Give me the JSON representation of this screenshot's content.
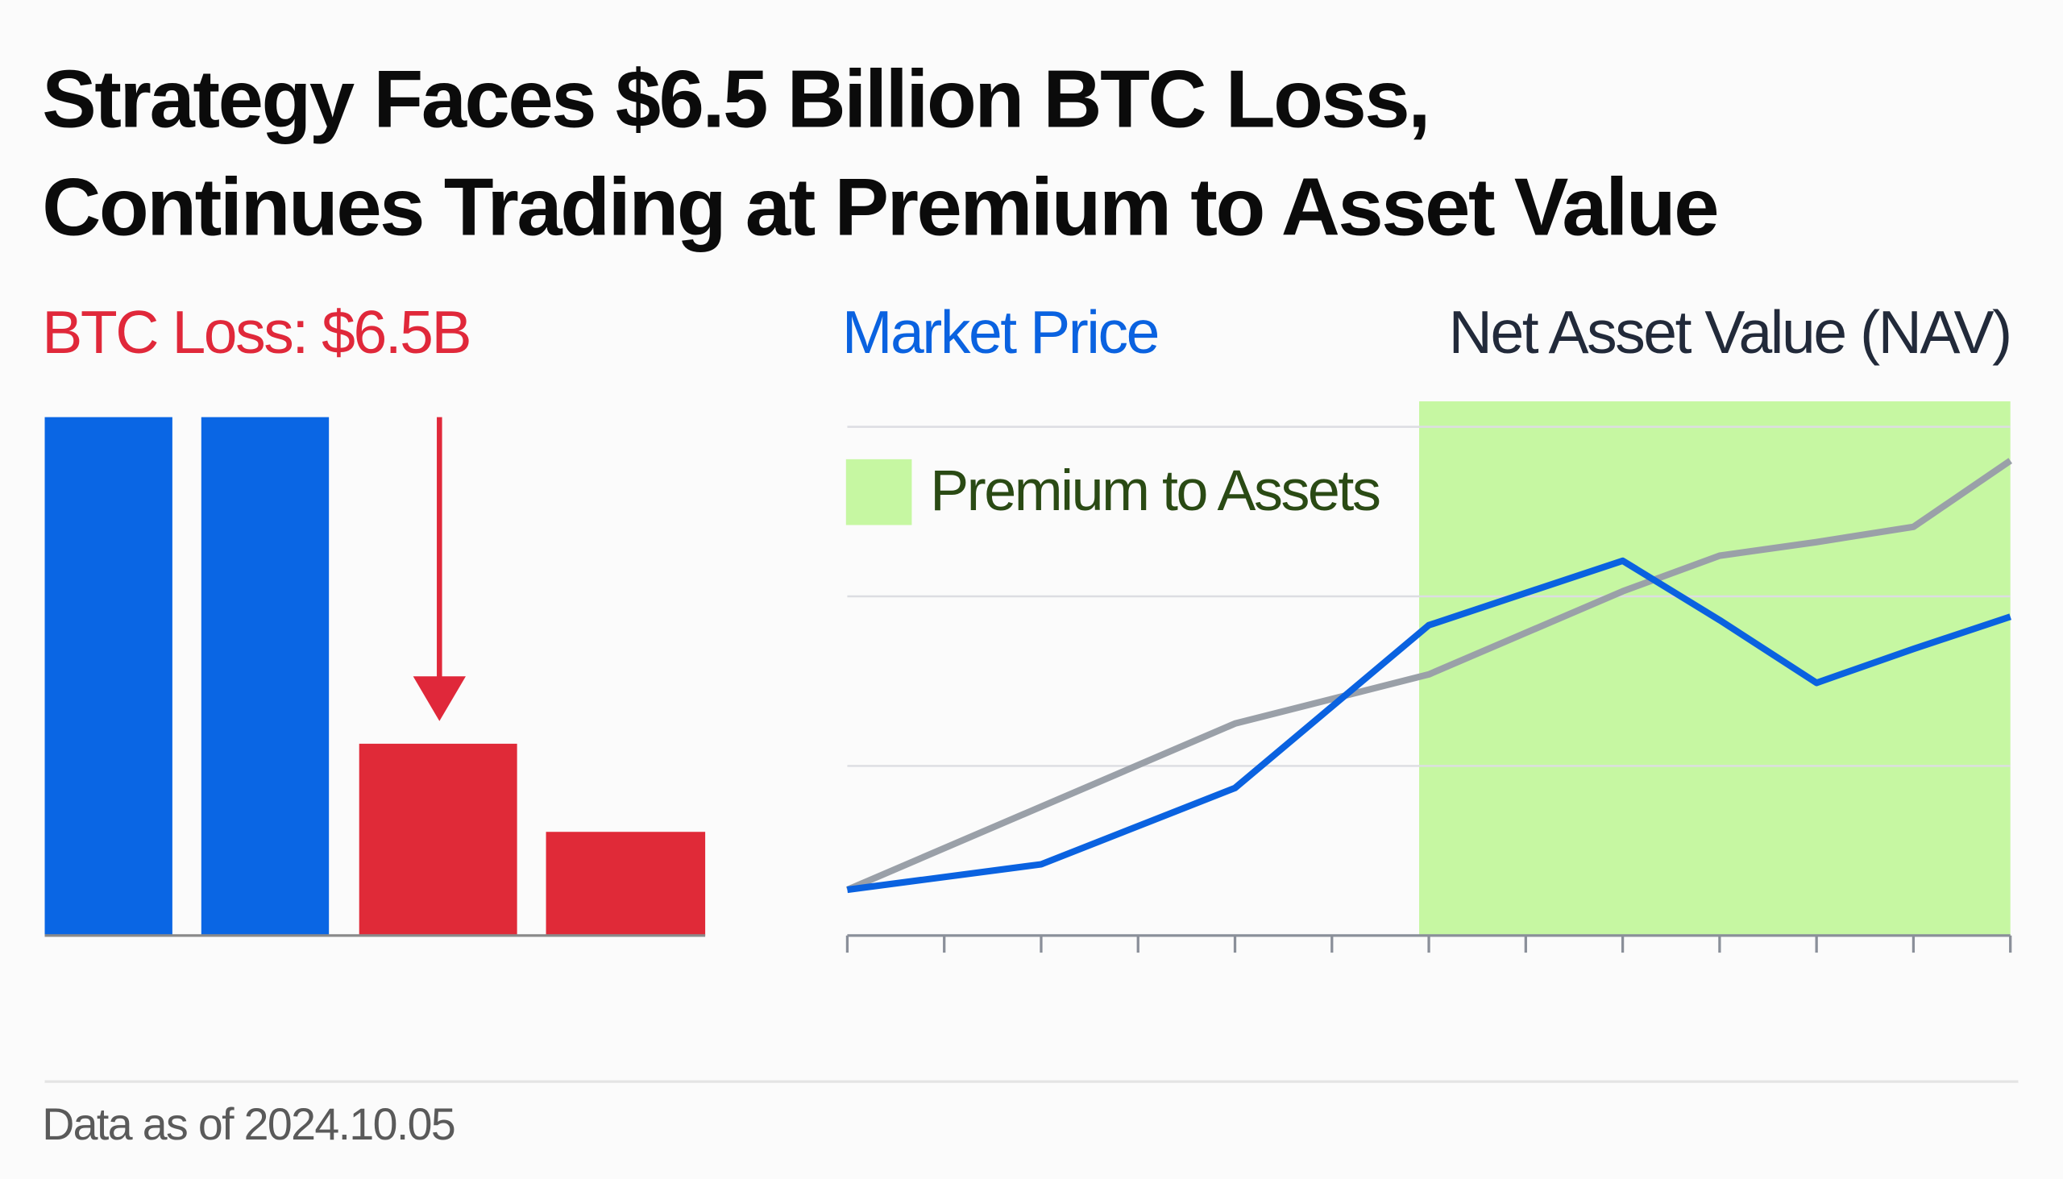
{
  "header": {
    "title_lines": [
      "Strategy Faces $6.5 Billion BTC Loss,",
      "Continues Trading at Premium to Asset Value"
    ]
  },
  "chart_data": [
    {
      "type": "bar",
      "annotation": "BTC Loss: $6.5B",
      "categories": [
        null,
        null,
        null,
        null
      ],
      "values": [
        100,
        100,
        37,
        20
      ],
      "colors": [
        "#0a66e4",
        "#0a66e4",
        "#e02a38",
        "#e02a38"
      ]
    },
    {
      "type": "line",
      "x": [
        0,
        2,
        4,
        6,
        8,
        9,
        10,
        11,
        12
      ],
      "series": [
        {
          "name": "Market Price",
          "color": "#0a62e0",
          "values": [
            0.27,
            0.42,
            0.87,
            1.83,
            2.21,
            1.86,
            1.49,
            1.69,
            1.88
          ]
        },
        {
          "name": "Net Asset Value (NAV)",
          "color": "#9aa0a8",
          "values": [
            0.27,
            0.76,
            1.25,
            1.54,
            2.03,
            2.24,
            2.32,
            2.41,
            2.8
          ]
        }
      ],
      "xlim": [
        0,
        12
      ],
      "ylim": [
        0,
        3.15
      ],
      "xticks": [
        0,
        1,
        2,
        3,
        4,
        5,
        6,
        7,
        8,
        9,
        10,
        11,
        12
      ],
      "yticks": [
        0,
        1,
        2,
        3
      ],
      "grid": true,
      "highlight": {
        "label": "Premium to Assets",
        "x": [
          5.9,
          12
        ],
        "color": "#c6f7a2"
      }
    }
  ],
  "footer": "Data as of 2024.10.05"
}
